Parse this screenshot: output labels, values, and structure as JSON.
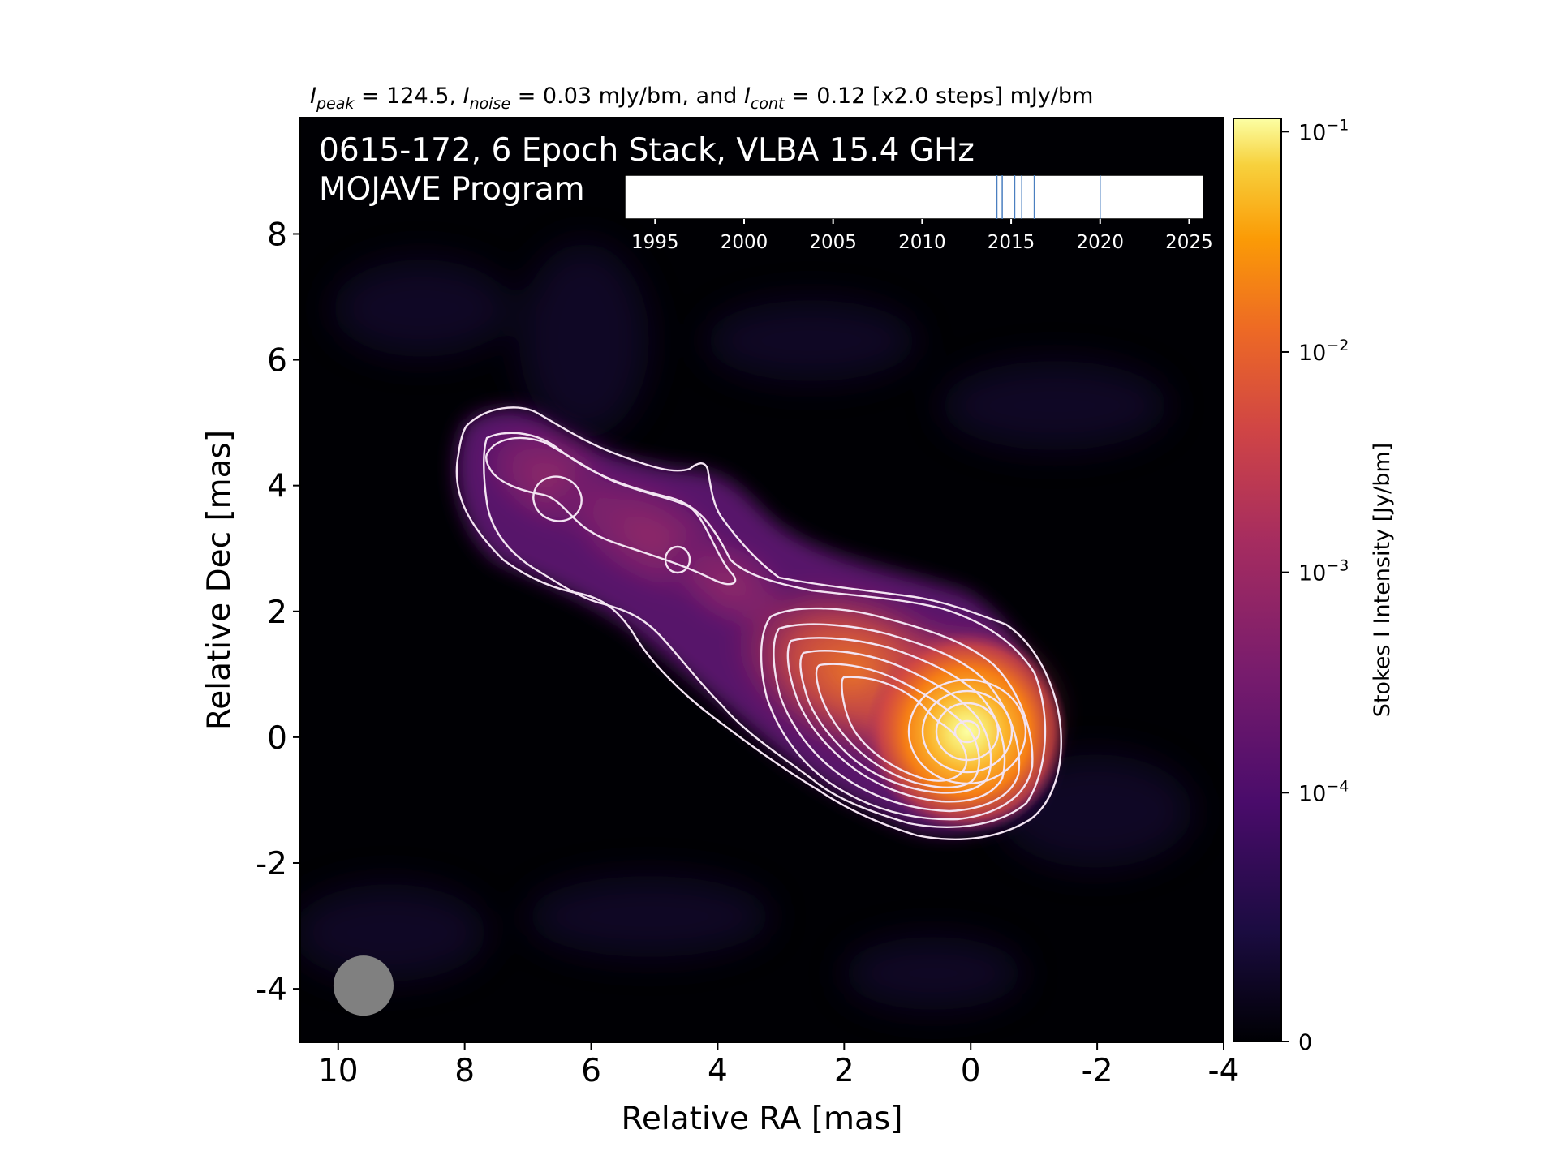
{
  "chart_data": {
    "type": "heatmap",
    "header": {
      "peak_symbol": "I",
      "peak_sub": "peak",
      "peak_text": " = 124.5, ",
      "noise_symbol": "I",
      "noise_sub": "noise",
      "noise_text": " = 0.03 mJy/bm, and ",
      "cont_symbol": "I",
      "cont_sub": "cont",
      "cont_text": " = 0.12 [x2.0 steps] mJy/bm"
    },
    "title_line1": "0615-172, 6 Epoch Stack, VLBA 15.4 GHz",
    "title_line2": "MOJAVE Program",
    "xlabel": "Relative RA [mas]",
    "ylabel": "Relative Dec [mas]",
    "xlim": [
      10.6,
      -4.0
    ],
    "ylim": [
      -4.85,
      9.85
    ],
    "xticks": [
      10,
      8,
      6,
      4,
      2,
      0,
      -2,
      -4
    ],
    "xtick_labels": [
      "10",
      "8",
      "6",
      "4",
      "2",
      "0",
      "-2",
      "-4"
    ],
    "yticks": [
      8,
      6,
      4,
      2,
      0,
      -2,
      -4
    ],
    "ytick_labels": [
      "8",
      "6",
      "4",
      "2",
      "0",
      "-2",
      "-4"
    ],
    "colorbar": {
      "label": "Stokes I Intensity [Jy/bm]",
      "scale": "log",
      "tick_values": [
        0.1,
        0.01,
        0.001,
        0.0001,
        0
      ],
      "tick_mantissas": [
        "10",
        "10",
        "10",
        "10",
        "0"
      ],
      "tick_exponents": [
        "−1",
        "−2",
        "−3",
        "−4",
        ""
      ],
      "colormap": "inferno"
    },
    "epoch_timeline": {
      "range": [
        1993.3,
        2025.8
      ],
      "ticks": [
        1995,
        2000,
        2005,
        2010,
        2015,
        2020,
        2025
      ],
      "tick_labels": [
        "1995",
        "2000",
        "2005",
        "2010",
        "2015",
        "2020",
        "2025"
      ],
      "epochs": [
        2014.2,
        2014.5,
        2015.2,
        2015.6,
        2016.3,
        2020.0
      ]
    },
    "beam": {
      "x": 9.6,
      "y": -3.95,
      "diameter_mas": 0.95
    },
    "emission": {
      "core": {
        "ra": 0.0,
        "dec": 0.0,
        "peak_jy": 0.1245
      },
      "jet_knots": [
        {
          "ra": 1.3,
          "dec": 1.05
        },
        {
          "ra": 2.4,
          "dec": 1.2
        },
        {
          "ra": 4.7,
          "dec": 2.8
        },
        {
          "ra": 6.7,
          "dec": 3.8
        }
      ]
    },
    "contour_levels_mjy": [
      0.12,
      0.24,
      0.48,
      0.96,
      1.92,
      3.84,
      7.68,
      15.36,
      30.72,
      61.44,
      122.88
    ]
  },
  "colors": {
    "contour": "#f3e4f2",
    "image_background": "#000004",
    "beam": "#808080",
    "timeline_line": "#4a7fc0",
    "timeline_fill": "#ffffff"
  }
}
